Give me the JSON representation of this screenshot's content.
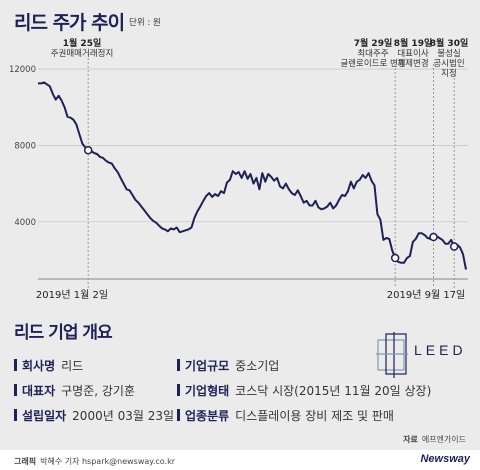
{
  "header": {
    "title": "리드 주가 추이",
    "unit": "단위 : 원"
  },
  "chart_data": {
    "type": "line",
    "y_ticks": [
      4000,
      8000,
      12000
    ],
    "ylim": [
      1000,
      13000
    ],
    "x_start_label": "2019년 1월 2일",
    "x_end_label": "2019년 9월 17일",
    "series": [
      {
        "values": [
          11250,
          11250,
          11300,
          11200,
          11100,
          10700,
          10400,
          10600,
          10350,
          10000,
          9500,
          9450,
          9350,
          9100,
          8600,
          8100,
          7900,
          7750,
          7700,
          7600,
          7550,
          7400,
          7350,
          7200,
          7100,
          7050,
          6800,
          6600,
          6300,
          6000,
          5700,
          5650,
          5400,
          5150,
          5000,
          4800,
          4600,
          4400,
          4200,
          4050,
          3950,
          3800,
          3650,
          3600,
          3500,
          3650,
          3600,
          3700,
          3450,
          3500,
          3550,
          3600,
          3700,
          4200,
          4550,
          4800,
          5100,
          5350,
          5500,
          5300,
          5450,
          5350,
          5600,
          5500,
          6050,
          6200,
          6650,
          6500,
          6600,
          6300,
          6650,
          6250,
          6500,
          6000,
          6300,
          5700,
          6550,
          6100,
          6500,
          6350,
          6150,
          6300,
          5850,
          5750,
          6000,
          5700,
          5500,
          5400,
          5650,
          5350,
          5000,
          5100,
          4850,
          4850,
          5100,
          4750,
          4650,
          4700,
          4800,
          5000,
          4700,
          4850,
          5150,
          5400,
          5350,
          5600,
          6100,
          5750,
          6100,
          6200,
          6450,
          6300,
          6550,
          6150,
          5900,
          4400,
          4100,
          3050,
          3150,
          3100,
          2500,
          2100,
          1900,
          1850,
          1850,
          2100,
          2200,
          2950,
          3100,
          3400,
          3400,
          3300,
          3150,
          3100,
          3200,
          3250,
          3150,
          3050,
          2850,
          2850,
          3050,
          2700,
          2800,
          2650,
          2300,
          1500
        ]
      }
    ],
    "annotations": [
      {
        "date": "1월 25일",
        "lines": [
          "주권매매거래정지"
        ]
      },
      {
        "date": "7월 29일",
        "lines": [
          "최대주주",
          "글렌로이드로 변경"
        ]
      },
      {
        "date": "8월 19일",
        "lines": [
          "대표이사",
          "체제변경"
        ]
      },
      {
        "date": "8월 30일",
        "lines": [
          "불성실",
          "공시법인",
          "지정"
        ]
      }
    ]
  },
  "overview": {
    "title": "리드 기업 개요",
    "logo_text": "LEED",
    "fields": [
      {
        "label": "회사명",
        "value": "리드"
      },
      {
        "label": "대표자",
        "value": "구명준, 강기훈"
      },
      {
        "label": "설립일자",
        "value": "2000년 03월 23일"
      },
      {
        "label": "기업규모",
        "value": "중소기업"
      },
      {
        "label": "기업형태",
        "value": "코스닥 시장(2015년 11월 20일 상장)"
      },
      {
        "label": "업종분류",
        "value": "디스플레이용 장비 제조 및 판매"
      }
    ]
  },
  "source": {
    "label": "자료",
    "value": "에프엔가이드"
  },
  "credit": {
    "label": "그래픽",
    "value": "박혜수 기자 hspark@newsway.co.kr"
  },
  "brand": "Newsway",
  "colors": {
    "navy": "#1e2156",
    "grid": "#c9c9c9"
  }
}
